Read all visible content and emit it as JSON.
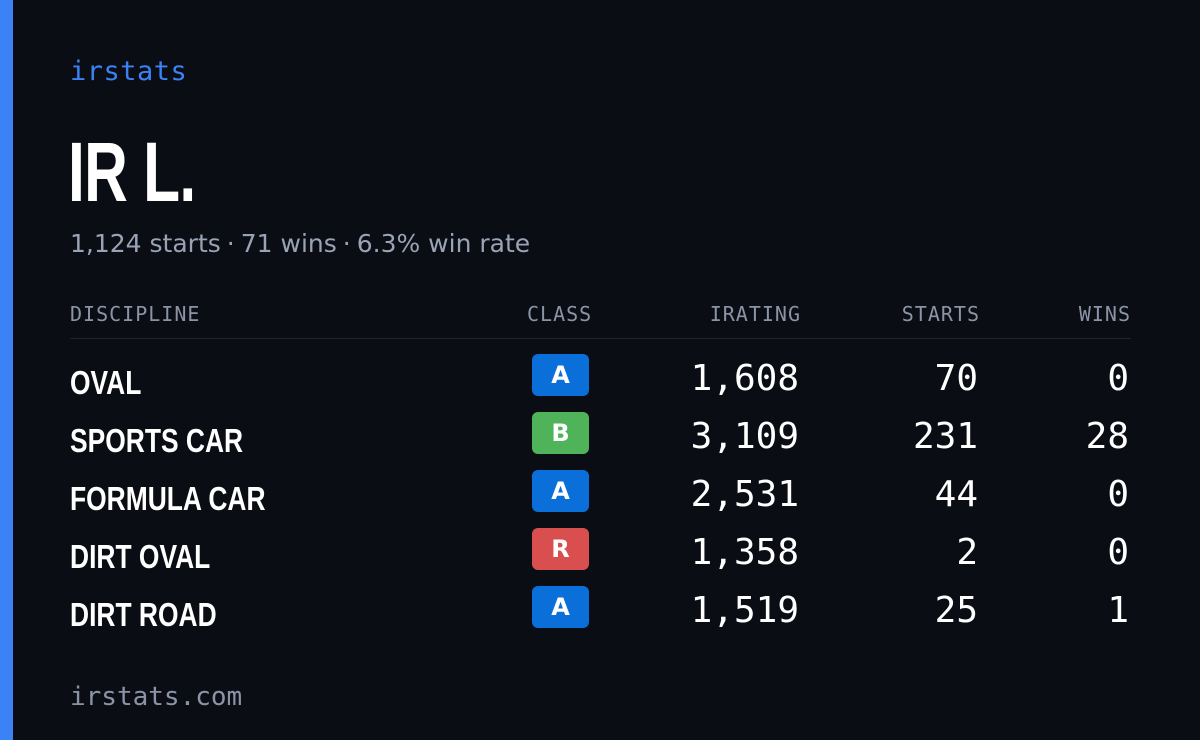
{
  "brand": "irstats",
  "driver_name": "IR L.",
  "summary": {
    "starts": "1,124 starts",
    "wins": "71 wins",
    "win_rate": "6.3% win rate",
    "separator": "·"
  },
  "table": {
    "headers": {
      "discipline": "DISCIPLINE",
      "class": "CLASS",
      "irating": "IRATING",
      "starts": "STARTS",
      "wins": "WINS"
    },
    "rows": [
      {
        "discipline": "OVAL",
        "class": "A",
        "class_color": "#0a6fd8",
        "irating": "1,608",
        "starts": "70",
        "wins": "0"
      },
      {
        "discipline": "SPORTS CAR",
        "class": "B",
        "class_color": "#4fb35a",
        "irating": "3,109",
        "starts": "231",
        "wins": "28"
      },
      {
        "discipline": "FORMULA CAR",
        "class": "A",
        "class_color": "#0a6fd8",
        "irating": "2,531",
        "starts": "44",
        "wins": "0"
      },
      {
        "discipline": "DIRT OVAL",
        "class": "R",
        "class_color": "#d94f4f",
        "irating": "1,358",
        "starts": "2",
        "wins": "0"
      },
      {
        "discipline": "DIRT ROAD",
        "class": "A",
        "class_color": "#0a6fd8",
        "irating": "1,519",
        "starts": "25",
        "wins": "1"
      }
    ]
  },
  "footer": "irstats.com",
  "colors": {
    "background": "#0a0d14",
    "accent": "#3b82f6",
    "muted_text": "#9aa3b5"
  }
}
